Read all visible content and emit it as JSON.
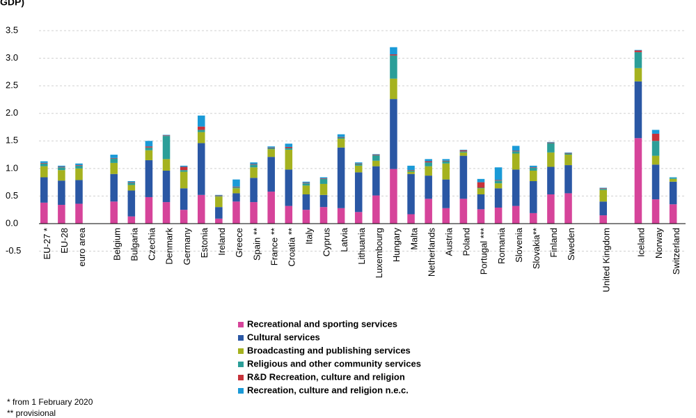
{
  "chart_data": {
    "type": "stacked_bar",
    "title": "GDP)",
    "categories": [
      "EU-27 *",
      "EU-28",
      "euro area",
      null,
      "Belgium",
      "Bulgaria",
      "Czechia",
      "Denmark",
      "Germany",
      "Estonia",
      "Ireland",
      "Greece",
      "Spain **",
      "France **",
      "Croatia **",
      "Italy",
      "Cyprus",
      "Latvia",
      "Lithuania",
      "Luxembourg",
      "Hungary",
      "Malta",
      "Netherlands",
      "Austria",
      "Poland",
      "Portugal ***",
      "Romania",
      "Slovenia",
      "Slovakia**",
      "Finland",
      "Sweden",
      null,
      "United Kingdom",
      null,
      "Iceland",
      "Norway",
      "Switzerland"
    ],
    "series": [
      {
        "name": "Recreational and sporting services",
        "color": "#d6449a",
        "values": [
          0.38,
          0.34,
          0.36,
          null,
          0.4,
          0.13,
          0.48,
          0.39,
          0.25,
          0.52,
          0.09,
          0.4,
          0.39,
          0.58,
          0.32,
          0.25,
          0.3,
          0.28,
          0.21,
          0.51,
          0.99,
          0.17,
          0.45,
          0.28,
          0.45,
          0.26,
          0.29,
          0.32,
          0.19,
          0.53,
          0.55,
          null,
          0.15,
          null,
          1.55,
          0.44,
          0.35
        ]
      },
      {
        "name": "Cultural services",
        "color": "#2a57a4",
        "values": [
          0.46,
          0.44,
          0.43,
          null,
          0.5,
          0.47,
          0.67,
          0.57,
          0.39,
          0.94,
          0.21,
          0.15,
          0.44,
          0.63,
          0.66,
          0.28,
          0.22,
          1.1,
          0.72,
          0.53,
          1.27,
          0.73,
          0.42,
          0.52,
          0.78,
          0.27,
          0.35,
          0.66,
          0.58,
          0.5,
          0.51,
          null,
          0.25,
          null,
          1.03,
          0.63,
          0.41
        ]
      },
      {
        "name": "Broadcasting and publishing services",
        "color": "#a5b21f",
        "values": [
          0.2,
          0.19,
          0.21,
          null,
          0.2,
          0.1,
          0.18,
          0.21,
          0.3,
          0.2,
          0.19,
          0.09,
          0.19,
          0.14,
          0.36,
          0.16,
          0.2,
          0.16,
          0.12,
          0.1,
          0.37,
          0.04,
          0.17,
          0.29,
          0.06,
          0.11,
          0.09,
          0.29,
          0.19,
          0.26,
          0.19,
          null,
          0.21,
          null,
          0.24,
          0.16,
          0.05
        ]
      },
      {
        "name": "Religious and other community services",
        "color": "#2b9e98",
        "values": [
          0.05,
          0.05,
          0.05,
          null,
          0.08,
          0.04,
          0.05,
          0.42,
          0.03,
          0.04,
          0.01,
          0.02,
          0.05,
          0.02,
          0.03,
          0.04,
          0.09,
          0.02,
          0.03,
          0.1,
          0.42,
          0.02,
          0.07,
          0.04,
          0.02,
          0.01,
          0.05,
          0.04,
          0.05,
          0.17,
          0.02,
          null,
          0.02,
          null,
          0.29,
          0.27,
          0.02
        ]
      },
      {
        "name": "R&D Recreation, culture and religion",
        "color": "#c7323a",
        "values": [
          0.01,
          0.01,
          0.01,
          null,
          0.01,
          0.01,
          0.02,
          0.01,
          0.06,
          0.06,
          0.01,
          0.01,
          0.01,
          0.01,
          0.02,
          0.01,
          0.01,
          0.01,
          0.01,
          0.01,
          0.02,
          0.01,
          0.02,
          0.01,
          0.02,
          0.1,
          0.01,
          0.01,
          0.01,
          0.01,
          0.01,
          null,
          0.01,
          null,
          0.03,
          0.13,
          0
        ]
      },
      {
        "name": "Recreation, culture and religion n.e.c.",
        "color": "#1a9ad7",
        "values": [
          0.03,
          0.02,
          0.03,
          null,
          0.06,
          0.02,
          0.1,
          0.01,
          0.02,
          0.2,
          0.01,
          0.13,
          0.03,
          0.02,
          0.06,
          0.02,
          0.02,
          0.05,
          0.02,
          0.01,
          0.13,
          0.08,
          0.04,
          0.03,
          0.01,
          0.06,
          0.23,
          0.09,
          0.03,
          0.01,
          0.01,
          null,
          0.01,
          null,
          0.01,
          0.07,
          0.01
        ]
      }
    ],
    "ylim": [
      -0.5,
      3.5
    ],
    "yticks": [
      -0.5,
      {
        "value": 0,
        "label": "0.0"
      },
      0.5,
      {
        "value": 1,
        "label": "1.0"
      },
      1.5,
      {
        "value": 2,
        "label": "2.0"
      },
      2.5,
      {
        "value": 3,
        "label": "3.0"
      },
      3.5
    ],
    "grid": true,
    "footnotes": [
      "* from 1 February 2020",
      "** provisional"
    ]
  }
}
